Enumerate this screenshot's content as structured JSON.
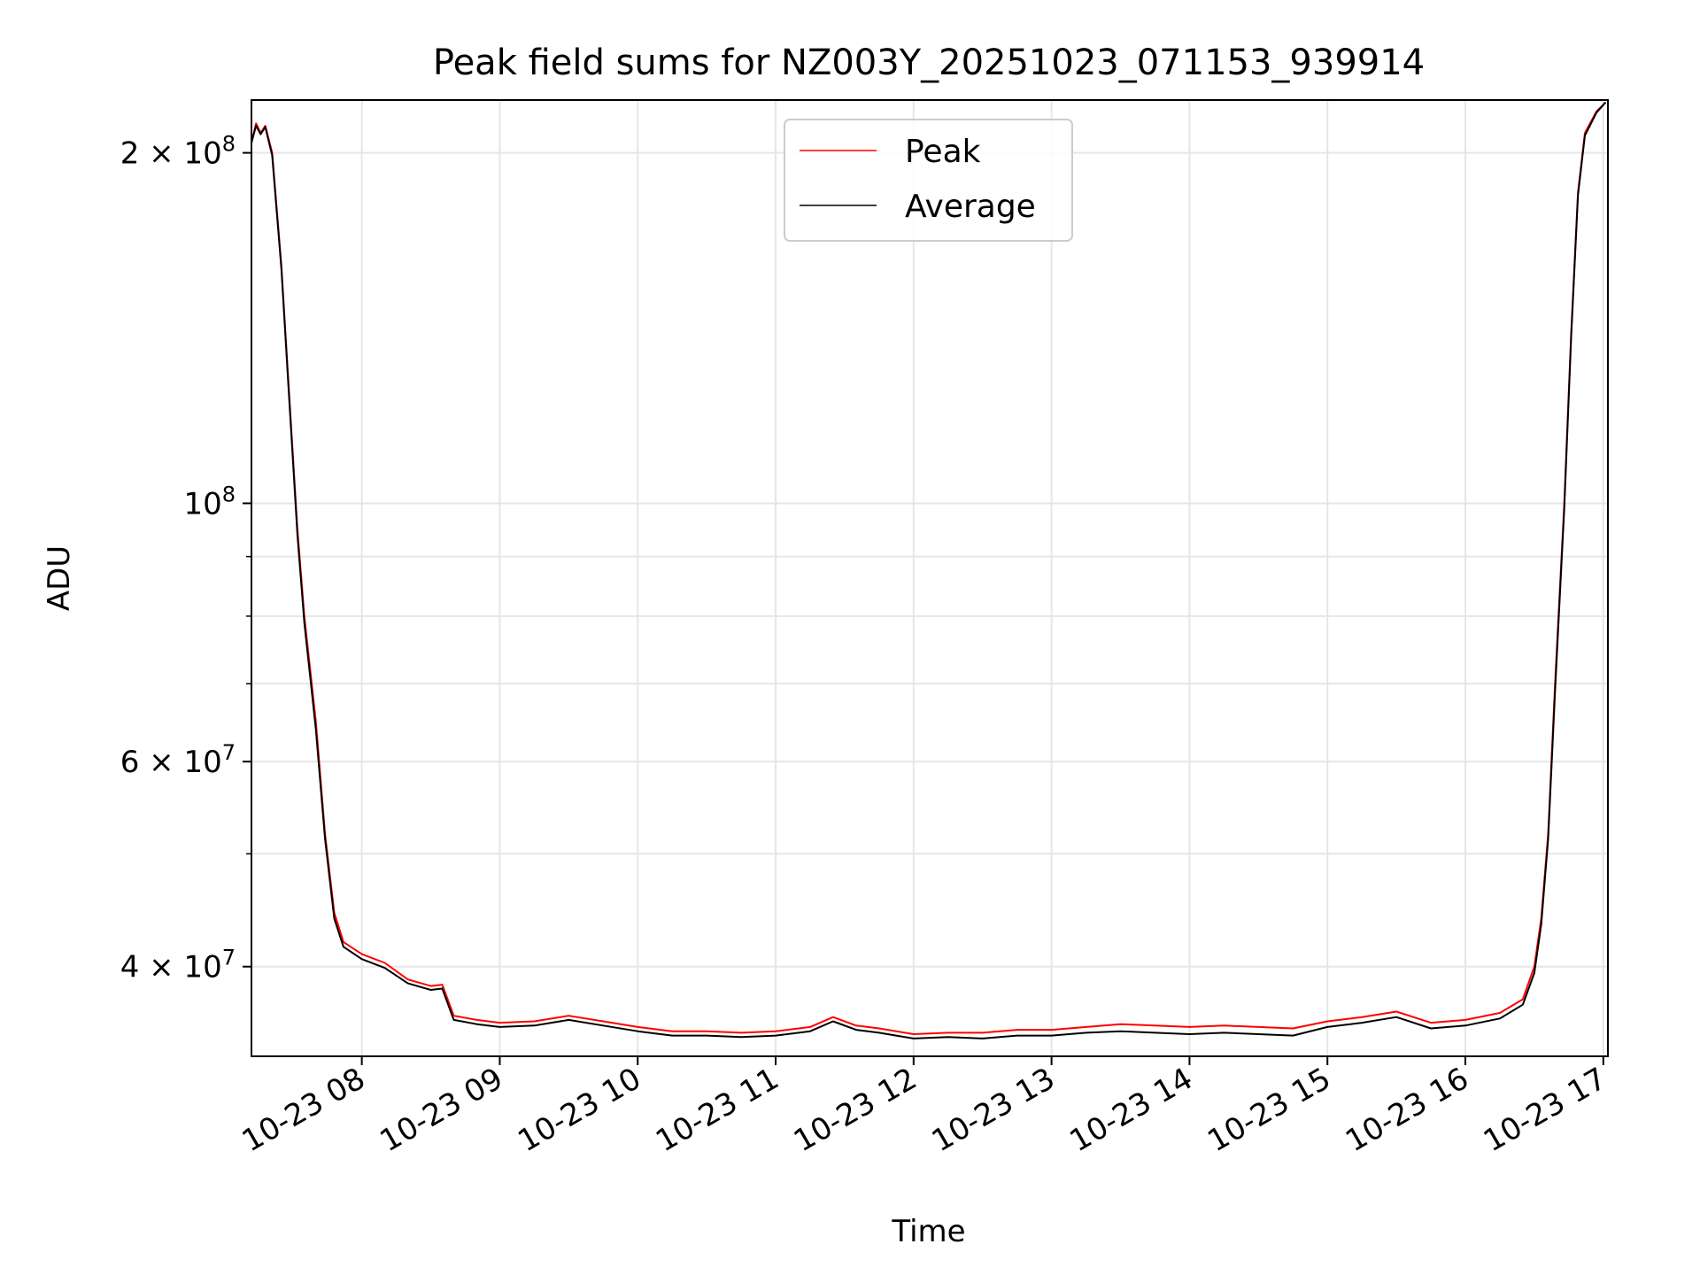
{
  "chart_data": {
    "type": "line",
    "title": "Peak field sums for NZ003Y_20251023_071153_939914",
    "xlabel": "Time",
    "ylabel": "ADU",
    "y_scale": "log",
    "xlim": [
      "2025-10-23 07:12",
      "2025-10-23 17:02"
    ],
    "ylim": [
      33500000,
      222000000
    ],
    "grid": true,
    "legend_position": "top-center",
    "x_ticks": [
      {
        "time": "2025-10-23 08:00",
        "label": "10-23 08"
      },
      {
        "time": "2025-10-23 09:00",
        "label": "10-23 09"
      },
      {
        "time": "2025-10-23 10:00",
        "label": "10-23 10"
      },
      {
        "time": "2025-10-23 11:00",
        "label": "10-23 11"
      },
      {
        "time": "2025-10-23 12:00",
        "label": "10-23 12"
      },
      {
        "time": "2025-10-23 13:00",
        "label": "10-23 13"
      },
      {
        "time": "2025-10-23 14:00",
        "label": "10-23 14"
      },
      {
        "time": "2025-10-23 15:00",
        "label": "10-23 15"
      },
      {
        "time": "2025-10-23 16:00",
        "label": "10-23 16"
      },
      {
        "time": "2025-10-23 17:00",
        "label": "10-23 17"
      }
    ],
    "y_ticks": [
      {
        "value": 40000000,
        "mantissa": "4 × 10",
        "exp": "7"
      },
      {
        "value": 60000000,
        "mantissa": "6 × 10",
        "exp": "7"
      },
      {
        "value": 100000000,
        "mantissa": "10",
        "exp": "8"
      },
      {
        "value": 200000000,
        "mantissa": "2 × 10",
        "exp": "8"
      }
    ],
    "y_minor": [
      50000000,
      70000000,
      80000000,
      90000000
    ],
    "series": [
      {
        "name": "Peak",
        "color": "#ff0000",
        "points": [
          [
            "2025-10-23 07:12",
            204000000
          ],
          [
            "2025-10-23 07:14",
            212000000
          ],
          [
            "2025-10-23 07:16",
            208000000
          ],
          [
            "2025-10-23 07:18",
            211000000
          ],
          [
            "2025-10-23 07:21",
            200000000
          ],
          [
            "2025-10-23 07:25",
            160000000
          ],
          [
            "2025-10-23 07:28",
            128000000
          ],
          [
            "2025-10-23 07:32",
            95000000
          ],
          [
            "2025-10-23 07:35",
            80000000
          ],
          [
            "2025-10-23 07:40",
            65000000
          ],
          [
            "2025-10-23 07:44",
            52000000
          ],
          [
            "2025-10-23 07:48",
            44500000
          ],
          [
            "2025-10-23 07:52",
            42000000
          ],
          [
            "2025-10-23 08:00",
            41000000
          ],
          [
            "2025-10-23 08:10",
            40300000
          ],
          [
            "2025-10-23 08:20",
            39000000
          ],
          [
            "2025-10-23 08:30",
            38500000
          ],
          [
            "2025-10-23 08:35",
            38600000
          ],
          [
            "2025-10-23 08:40",
            36300000
          ],
          [
            "2025-10-23 08:50",
            36000000
          ],
          [
            "2025-10-23 09:00",
            35800000
          ],
          [
            "2025-10-23 09:15",
            35900000
          ],
          [
            "2025-10-23 09:30",
            36300000
          ],
          [
            "2025-10-23 09:45",
            35900000
          ],
          [
            "2025-10-23 10:00",
            35500000
          ],
          [
            "2025-10-23 10:15",
            35200000
          ],
          [
            "2025-10-23 10:30",
            35200000
          ],
          [
            "2025-10-23 10:45",
            35100000
          ],
          [
            "2025-10-23 11:00",
            35200000
          ],
          [
            "2025-10-23 11:15",
            35500000
          ],
          [
            "2025-10-23 11:25",
            36200000
          ],
          [
            "2025-10-23 11:35",
            35600000
          ],
          [
            "2025-10-23 11:45",
            35400000
          ],
          [
            "2025-10-23 12:00",
            35000000
          ],
          [
            "2025-10-23 12:15",
            35100000
          ],
          [
            "2025-10-23 12:30",
            35100000
          ],
          [
            "2025-10-23 12:45",
            35300000
          ],
          [
            "2025-10-23 13:00",
            35300000
          ],
          [
            "2025-10-23 13:15",
            35500000
          ],
          [
            "2025-10-23 13:30",
            35700000
          ],
          [
            "2025-10-23 13:45",
            35600000
          ],
          [
            "2025-10-23 14:00",
            35500000
          ],
          [
            "2025-10-23 14:15",
            35600000
          ],
          [
            "2025-10-23 14:30",
            35500000
          ],
          [
            "2025-10-23 14:45",
            35400000
          ],
          [
            "2025-10-23 15:00",
            35900000
          ],
          [
            "2025-10-23 15:15",
            36200000
          ],
          [
            "2025-10-23 15:30",
            36600000
          ],
          [
            "2025-10-23 15:45",
            35800000
          ],
          [
            "2025-10-23 16:00",
            36000000
          ],
          [
            "2025-10-23 16:15",
            36500000
          ],
          [
            "2025-10-23 16:25",
            37500000
          ],
          [
            "2025-10-23 16:30",
            40000000
          ],
          [
            "2025-10-23 16:33",
            44000000
          ],
          [
            "2025-10-23 16:36",
            52000000
          ],
          [
            "2025-10-23 16:39",
            70000000
          ],
          [
            "2025-10-23 16:43",
            100000000
          ],
          [
            "2025-10-23 16:46",
            140000000
          ],
          [
            "2025-10-23 16:49",
            185000000
          ],
          [
            "2025-10-23 16:52",
            208000000
          ],
          [
            "2025-10-23 16:57",
            217000000
          ],
          [
            "2025-10-23 17:01",
            221000000
          ]
        ]
      },
      {
        "name": "Average",
        "color": "#000000",
        "points": [
          [
            "2025-10-23 07:12",
            204000000
          ],
          [
            "2025-10-23 07:14",
            211000000
          ],
          [
            "2025-10-23 07:16",
            207500000
          ],
          [
            "2025-10-23 07:18",
            210500000
          ],
          [
            "2025-10-23 07:21",
            199000000
          ],
          [
            "2025-10-23 07:25",
            159000000
          ],
          [
            "2025-10-23 07:28",
            127000000
          ],
          [
            "2025-10-23 07:32",
            94000000
          ],
          [
            "2025-10-23 07:35",
            79000000
          ],
          [
            "2025-10-23 07:40",
            64000000
          ],
          [
            "2025-10-23 07:44",
            51500000
          ],
          [
            "2025-10-23 07:48",
            44000000
          ],
          [
            "2025-10-23 07:52",
            41600000
          ],
          [
            "2025-10-23 08:00",
            40600000
          ],
          [
            "2025-10-23 08:10",
            39900000
          ],
          [
            "2025-10-23 08:20",
            38700000
          ],
          [
            "2025-10-23 08:30",
            38200000
          ],
          [
            "2025-10-23 08:35",
            38300000
          ],
          [
            "2025-10-23 08:40",
            36000000
          ],
          [
            "2025-10-23 08:50",
            35700000
          ],
          [
            "2025-10-23 09:00",
            35500000
          ],
          [
            "2025-10-23 09:15",
            35600000
          ],
          [
            "2025-10-23 09:30",
            36000000
          ],
          [
            "2025-10-23 09:45",
            35600000
          ],
          [
            "2025-10-23 10:00",
            35200000
          ],
          [
            "2025-10-23 10:15",
            34900000
          ],
          [
            "2025-10-23 10:30",
            34900000
          ],
          [
            "2025-10-23 10:45",
            34800000
          ],
          [
            "2025-10-23 11:00",
            34900000
          ],
          [
            "2025-10-23 11:15",
            35200000
          ],
          [
            "2025-10-23 11:25",
            35900000
          ],
          [
            "2025-10-23 11:35",
            35300000
          ],
          [
            "2025-10-23 11:45",
            35100000
          ],
          [
            "2025-10-23 12:00",
            34700000
          ],
          [
            "2025-10-23 12:15",
            34800000
          ],
          [
            "2025-10-23 12:30",
            34700000
          ],
          [
            "2025-10-23 12:45",
            34900000
          ],
          [
            "2025-10-23 13:00",
            34900000
          ],
          [
            "2025-10-23 13:15",
            35100000
          ],
          [
            "2025-10-23 13:30",
            35200000
          ],
          [
            "2025-10-23 13:45",
            35100000
          ],
          [
            "2025-10-23 14:00",
            35000000
          ],
          [
            "2025-10-23 14:15",
            35100000
          ],
          [
            "2025-10-23 14:30",
            35000000
          ],
          [
            "2025-10-23 14:45",
            34900000
          ],
          [
            "2025-10-23 15:00",
            35500000
          ],
          [
            "2025-10-23 15:15",
            35800000
          ],
          [
            "2025-10-23 15:30",
            36200000
          ],
          [
            "2025-10-23 15:45",
            35400000
          ],
          [
            "2025-10-23 16:00",
            35600000
          ],
          [
            "2025-10-23 16:15",
            36100000
          ],
          [
            "2025-10-23 16:25",
            37100000
          ],
          [
            "2025-10-23 16:30",
            39500000
          ],
          [
            "2025-10-23 16:33",
            43500000
          ],
          [
            "2025-10-23 16:36",
            51500000
          ],
          [
            "2025-10-23 16:39",
            69000000
          ],
          [
            "2025-10-23 16:43",
            99000000
          ],
          [
            "2025-10-23 16:46",
            139000000
          ],
          [
            "2025-10-23 16:49",
            184000000
          ],
          [
            "2025-10-23 16:52",
            207000000
          ],
          [
            "2025-10-23 16:57",
            216500000
          ],
          [
            "2025-10-23 17:01",
            221000000
          ]
        ]
      }
    ]
  }
}
